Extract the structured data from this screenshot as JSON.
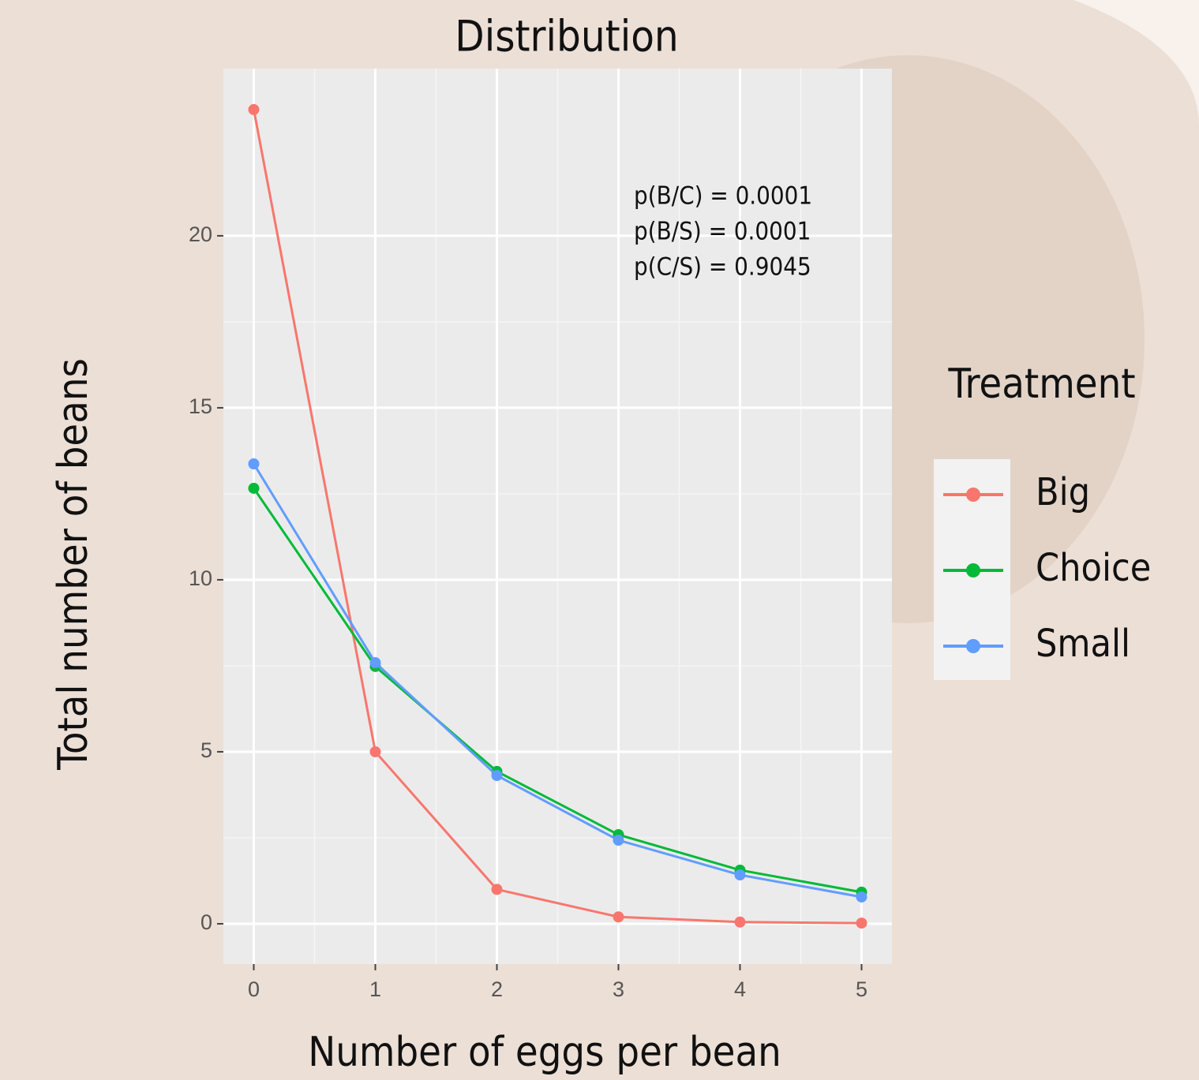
{
  "chart_data": {
    "type": "line",
    "title": "Distribution",
    "x_label": "Number of eggs per bean",
    "y_label": "Total number of beans",
    "x": [
      0,
      1,
      2,
      3,
      4,
      5
    ],
    "series": [
      {
        "name": "Big",
        "color": "#f8766d",
        "values": [
          23.67,
          5.0,
          1.0,
          0.2,
          0.05,
          0.02
        ]
      },
      {
        "name": "Choice",
        "color": "#00ba38",
        "values": [
          12.66,
          7.48,
          4.43,
          2.59,
          1.56,
          0.92
        ]
      },
      {
        "name": "Small",
        "color": "#619cff",
        "values": [
          13.37,
          7.59,
          4.31,
          2.43,
          1.42,
          0.78
        ]
      }
    ],
    "xlim": [
      -0.25,
      5.25
    ],
    "ylim": [
      -1.17,
      24.86
    ],
    "xticks": [
      0,
      1,
      2,
      3,
      4,
      5
    ],
    "yticks": [
      0,
      5,
      10,
      15,
      20
    ],
    "grid": true,
    "legend_title": "Treatment",
    "legend_position": "right",
    "annotations": [
      "p(B/C) = 0.0001",
      "p(B/S) = 0.0001",
      "p(C/S) = 0.9045"
    ]
  }
}
